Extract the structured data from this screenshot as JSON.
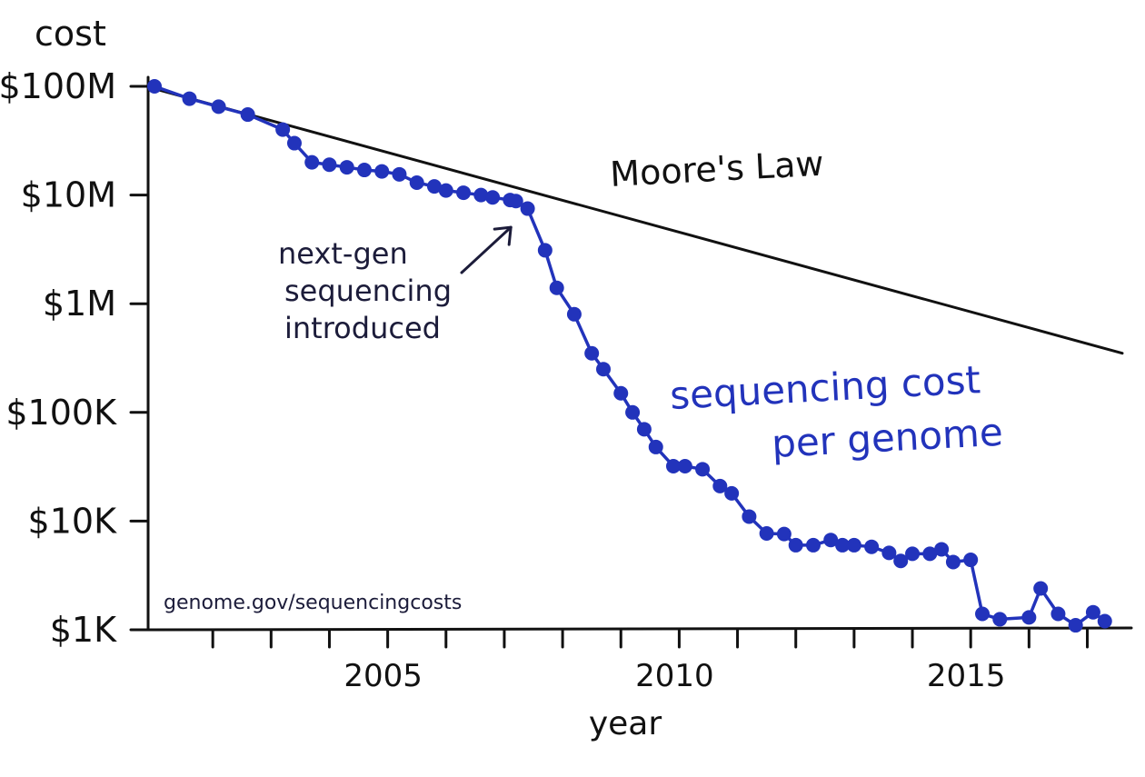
{
  "chart_data": {
    "type": "line",
    "y_scale": "log",
    "ylabel": "cost",
    "xlabel": "year",
    "xlim": [
      2001,
      2017.6
    ],
    "ylim": [
      1000,
      100000000
    ],
    "x_ticks": [
      2005,
      2010,
      2015
    ],
    "y_ticks": [
      {
        "value": 100000000,
        "label": "$100M"
      },
      {
        "value": 10000000,
        "label": "$10M"
      },
      {
        "value": 1000000,
        "label": "$1M"
      },
      {
        "value": 100000,
        "label": "$100K"
      },
      {
        "value": 10000,
        "label": "$10K"
      },
      {
        "value": 1000,
        "label": "$1K"
      }
    ],
    "series": [
      {
        "name": "Moore's Law",
        "label": "Moore's Law",
        "color": "#111111",
        "points": [
          [
            2001.0,
            95000000
          ],
          [
            2017.6,
            350000
          ]
        ]
      },
      {
        "name": "sequencing cost per genome",
        "label_line1": "sequencing cost",
        "label_line2": "per genome",
        "color": "#2233bb",
        "points": [
          [
            2001.0,
            100000000
          ],
          [
            2001.6,
            77000000
          ],
          [
            2002.1,
            65000000
          ],
          [
            2002.6,
            55000000
          ],
          [
            2003.2,
            40000000
          ],
          [
            2003.4,
            30000000
          ],
          [
            2003.7,
            20000000
          ],
          [
            2004.0,
            19000000
          ],
          [
            2004.3,
            18000000
          ],
          [
            2004.6,
            17000000
          ],
          [
            2004.9,
            16500000
          ],
          [
            2005.2,
            15500000
          ],
          [
            2005.5,
            13000000
          ],
          [
            2005.8,
            12000000
          ],
          [
            2006.0,
            11000000
          ],
          [
            2006.3,
            10500000
          ],
          [
            2006.6,
            10000000
          ],
          [
            2006.8,
            9500000
          ],
          [
            2007.1,
            9000000
          ],
          [
            2007.2,
            8800000
          ],
          [
            2007.4,
            7500000
          ],
          [
            2007.7,
            3100000
          ],
          [
            2007.9,
            1400000
          ],
          [
            2008.2,
            800000
          ],
          [
            2008.5,
            350000
          ],
          [
            2008.7,
            250000
          ],
          [
            2009.0,
            150000
          ],
          [
            2009.2,
            100000
          ],
          [
            2009.4,
            70000
          ],
          [
            2009.6,
            48000
          ],
          [
            2009.9,
            32000
          ],
          [
            2010.1,
            32000
          ],
          [
            2010.4,
            30000
          ],
          [
            2010.7,
            21000
          ],
          [
            2010.9,
            18000
          ],
          [
            2011.2,
            11000
          ],
          [
            2011.5,
            7700
          ],
          [
            2011.8,
            7600
          ],
          [
            2012.0,
            6000
          ],
          [
            2012.3,
            6000
          ],
          [
            2012.6,
            6700
          ],
          [
            2012.8,
            6000
          ],
          [
            2013.0,
            6000
          ],
          [
            2013.3,
            5800
          ],
          [
            2013.6,
            5100
          ],
          [
            2013.8,
            4300
          ],
          [
            2014.0,
            5000
          ],
          [
            2014.3,
            5000
          ],
          [
            2014.5,
            5500
          ],
          [
            2014.7,
            4200
          ],
          [
            2015.0,
            4400
          ],
          [
            2015.2,
            1400
          ],
          [
            2015.5,
            1250
          ],
          [
            2016.0,
            1300
          ],
          [
            2016.2,
            2400
          ],
          [
            2016.5,
            1400
          ],
          [
            2016.8,
            1100
          ],
          [
            2017.1,
            1450
          ],
          [
            2017.3,
            1200
          ]
        ]
      }
    ],
    "annotations": [
      {
        "lines": [
          "next-gen",
          "sequencing",
          "introduced"
        ],
        "arrow_to": [
          2007.3,
          9000000
        ]
      }
    ],
    "source_note": "genome.gov/sequencingcosts"
  }
}
